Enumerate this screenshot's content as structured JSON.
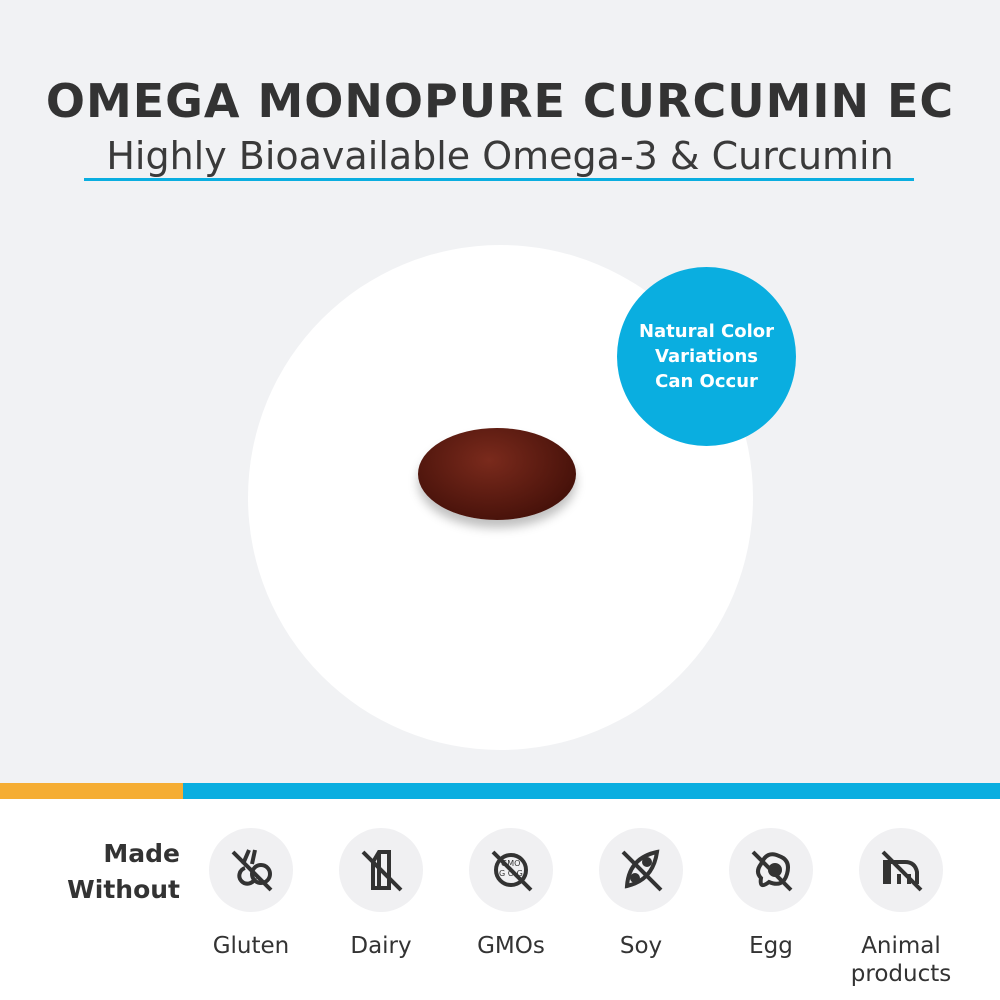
{
  "header": {
    "title": "OMEGA MONOPURE CURCUMIN EC",
    "subtitle": "Highly Bioavailable Omega-3 & Curcumin"
  },
  "badge": {
    "line1": "Natural Color",
    "line2": "Variations",
    "line3": "Can Occur"
  },
  "made_without": {
    "label_line1": "Made",
    "label_line2": "Without",
    "items": [
      {
        "label": "Gluten",
        "icon": "no-gluten-icon"
      },
      {
        "label": "Dairy",
        "icon": "no-dairy-icon"
      },
      {
        "label": "GMOs",
        "icon": "no-gmo-icon"
      },
      {
        "label": "Soy",
        "icon": "no-soy-icon"
      },
      {
        "label": "Egg",
        "icon": "no-egg-icon"
      },
      {
        "label": "Animal products",
        "icon": "no-animal-products-icon"
      }
    ]
  },
  "colors": {
    "accent_blue": "#0aaee0",
    "accent_orange": "#f5ad33"
  }
}
